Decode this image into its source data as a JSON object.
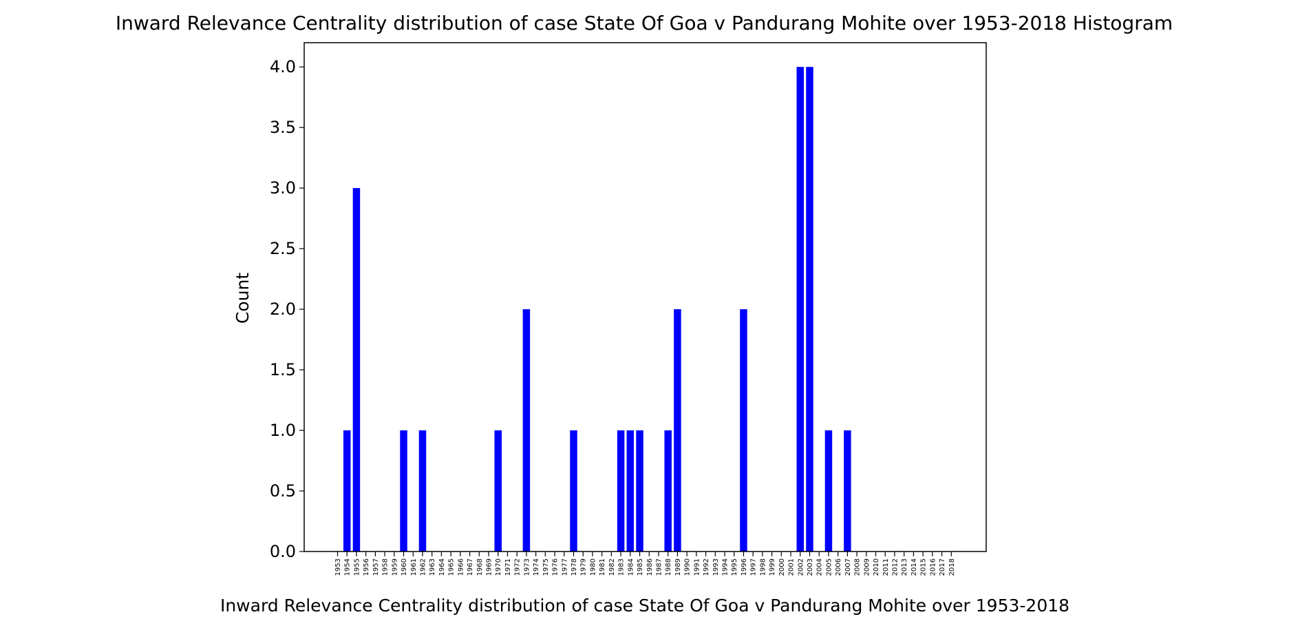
{
  "chart_data": {
    "type": "bar",
    "title": "Inward Relevance Centrality distribution of case State Of Goa v Pandurang Mohite over 1953-2018 Histogram",
    "xlabel": "Inward Relevance Centrality distribution of case State Of Goa v Pandurang Mohite over 1953-2018",
    "ylabel": "Count",
    "ylim": [
      0,
      4.2
    ],
    "yticks": [
      "0.0",
      "0.5",
      "1.0",
      "1.5",
      "2.0",
      "2.5",
      "3.0",
      "3.5",
      "4.0"
    ],
    "categories": [
      "1953",
      "1954",
      "1955",
      "1956",
      "1957",
      "1958",
      "1959",
      "1960",
      "1961",
      "1962",
      "1963",
      "1964",
      "1965",
      "1966",
      "1967",
      "1968",
      "1969",
      "1970",
      "1971",
      "1972",
      "1973",
      "1974",
      "1975",
      "1976",
      "1977",
      "1978",
      "1979",
      "1980",
      "1981",
      "1982",
      "1983",
      "1984",
      "1985",
      "1986",
      "1987",
      "1988",
      "1989",
      "1990",
      "1991",
      "1992",
      "1993",
      "1994",
      "1995",
      "1996",
      "1997",
      "1998",
      "1999",
      "2000",
      "2001",
      "2002",
      "2003",
      "2004",
      "2005",
      "2006",
      "2007",
      "2008",
      "2009",
      "2010",
      "2011",
      "2012",
      "2013",
      "2014",
      "2015",
      "2016",
      "2017",
      "2018"
    ],
    "values": [
      0,
      1,
      3,
      0,
      0,
      0,
      0,
      1,
      0,
      1,
      0,
      0,
      0,
      0,
      0,
      0,
      0,
      1,
      0,
      0,
      2,
      0,
      0,
      0,
      0,
      1,
      0,
      0,
      0,
      0,
      1,
      1,
      1,
      0,
      0,
      1,
      2,
      0,
      0,
      0,
      0,
      0,
      0,
      2,
      0,
      0,
      0,
      0,
      0,
      4,
      4,
      0,
      1,
      0,
      1,
      0,
      0,
      0,
      0,
      0,
      0,
      0,
      0,
      0,
      0,
      0
    ],
    "bar_color": "#0000ff",
    "grid": false,
    "legend": "none"
  }
}
